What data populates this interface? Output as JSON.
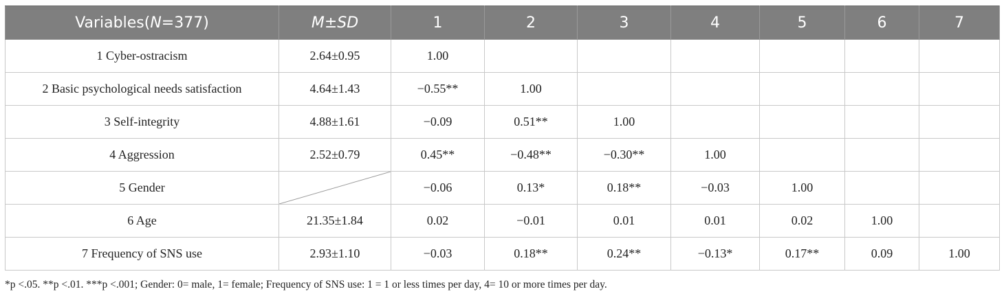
{
  "table": {
    "header": {
      "variables_prefix": "Variables(",
      "variables_n_italic": "N",
      "variables_suffix": "=377)",
      "msd_m": "M",
      "msd_pm": "±",
      "msd_sd": "SD",
      "cols": [
        "1",
        "2",
        "3",
        "4",
        "5",
        "6",
        "7"
      ]
    },
    "rows": [
      {
        "label": "1 Cyber-ostracism",
        "msd": "2.64±0.95",
        "values": [
          "1.00",
          "",
          "",
          "",
          "",
          "",
          ""
        ]
      },
      {
        "label": "2 Basic psychological needs satisfaction",
        "msd": "4.64±1.43",
        "values": [
          "−0.55**",
          "1.00",
          "",
          "",
          "",
          "",
          ""
        ]
      },
      {
        "label": "3 Self-integrity",
        "msd": "4.88±1.61",
        "values": [
          "−0.09",
          "0.51**",
          "1.00",
          "",
          "",
          "",
          ""
        ]
      },
      {
        "label": "4 Aggression",
        "msd": "2.52±0.79",
        "values": [
          "0.45**",
          "−0.48**",
          "−0.30**",
          "1.00",
          "",
          "",
          ""
        ]
      },
      {
        "label": "5 Gender",
        "msd": "",
        "values": [
          "−0.06",
          "0.13*",
          "0.18**",
          "−0.03",
          "1.00",
          "",
          ""
        ]
      },
      {
        "label": "6 Age",
        "msd": "21.35±1.84",
        "values": [
          "0.02",
          "−0.01",
          "0.01",
          "0.01",
          "0.02",
          "1.00",
          ""
        ]
      },
      {
        "label": "7 Frequency of SNS use",
        "msd": "2.93±1.10",
        "values": [
          "−0.03",
          "0.18**",
          "0.24**",
          "−0.13*",
          "0.17**",
          "0.09",
          "1.00"
        ]
      }
    ]
  },
  "footnote": "*p <.05. **p <.01. ***p <.001; Gender: 0= male, 1= female; Frequency of SNS use: 1 = 1 or less times per day, 4= 10 or more times per day."
}
